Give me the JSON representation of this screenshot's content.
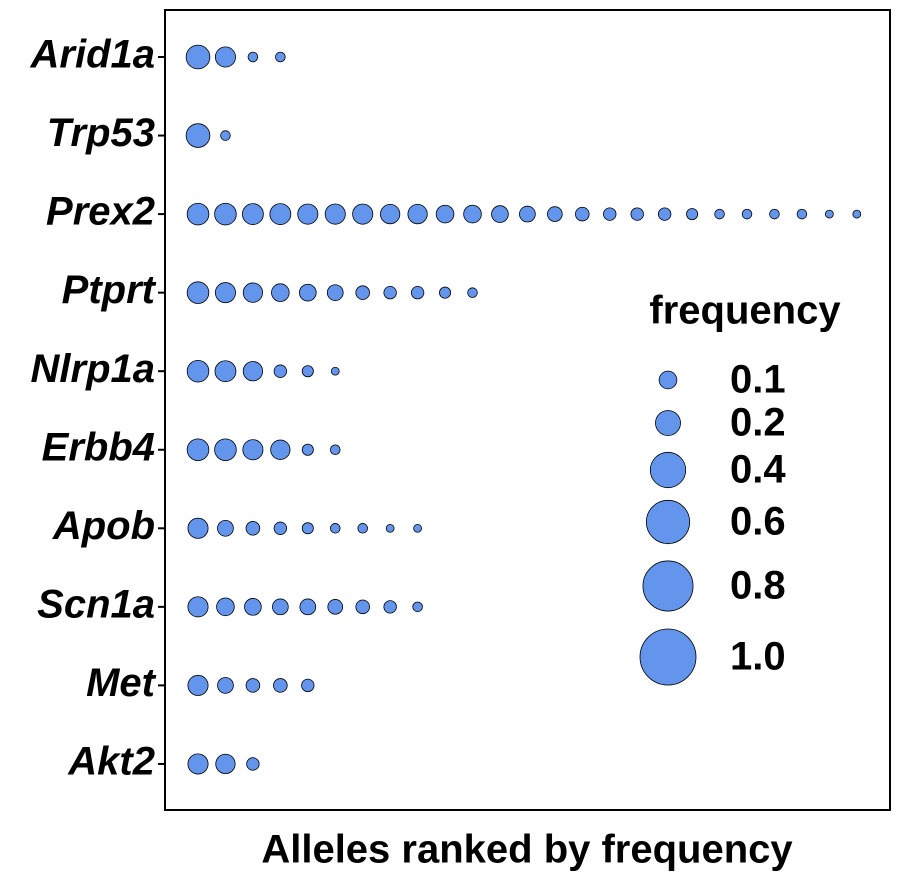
{
  "chart_data": {
    "type": "dot",
    "x_label": "Alleles ranked by frequency",
    "color": "#6495ed",
    "categories": [
      "Arid1a",
      "Trp53",
      "Prex2",
      "Ptprt",
      "Nlrp1a",
      "Erbb4",
      "Apob",
      "Scn1a",
      "Met",
      "Akt2"
    ],
    "values": [
      [
        0.18,
        0.13,
        0.03,
        0.03
      ],
      [
        0.18,
        0.03
      ],
      [
        0.15,
        0.15,
        0.14,
        0.14,
        0.13,
        0.13,
        0.13,
        0.12,
        0.12,
        0.1,
        0.1,
        0.09,
        0.08,
        0.07,
        0.06,
        0.05,
        0.05,
        0.05,
        0.04,
        0.03,
        0.03,
        0.03,
        0.03,
        0.02,
        0.02
      ],
      [
        0.15,
        0.13,
        0.12,
        0.1,
        0.09,
        0.08,
        0.06,
        0.05,
        0.05,
        0.04,
        0.03
      ],
      [
        0.15,
        0.14,
        0.12,
        0.05,
        0.04,
        0.02
      ],
      [
        0.15,
        0.15,
        0.13,
        0.12,
        0.04,
        0.03
      ],
      [
        0.13,
        0.08,
        0.06,
        0.05,
        0.04,
        0.03,
        0.03,
        0.02,
        0.02
      ],
      [
        0.13,
        0.1,
        0.09,
        0.08,
        0.08,
        0.07,
        0.06,
        0.05,
        0.03
      ],
      [
        0.13,
        0.08,
        0.06,
        0.06,
        0.05
      ],
      [
        0.13,
        0.12,
        0.05
      ]
    ],
    "size_legend": {
      "title": "frequency",
      "values": [
        0.1,
        0.2,
        0.4,
        0.6,
        0.8,
        {
          "value": 1,
          "label": "1.0"
        }
      ]
    }
  }
}
